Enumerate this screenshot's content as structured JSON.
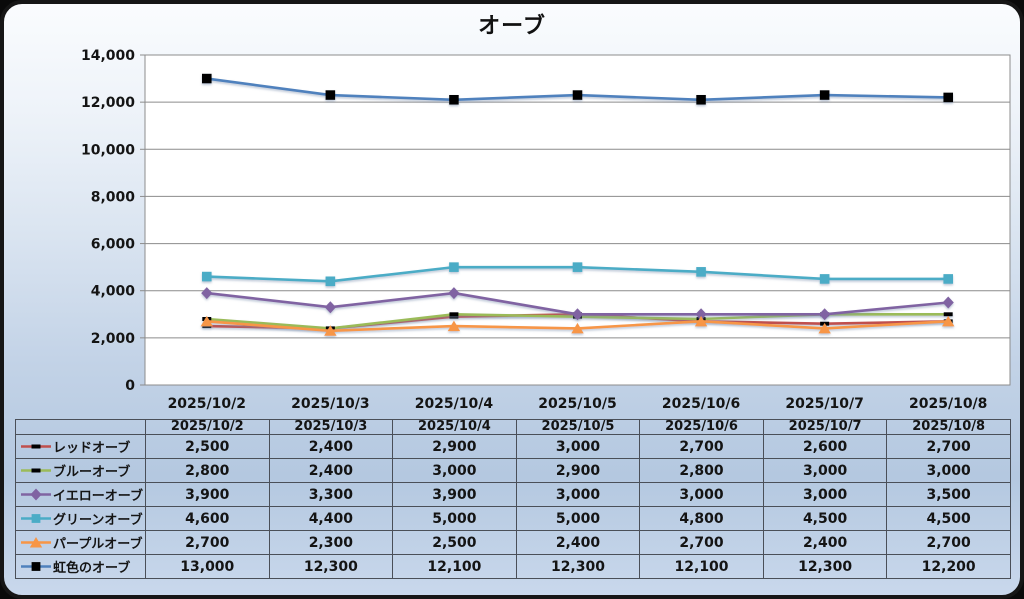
{
  "title": "オーブ",
  "colors": {
    "plot_background": "#ffffff",
    "gridline": "#8c8c8c",
    "text": "#141414",
    "panel_gradient_top": "#fafcfe",
    "panel_gradient_bottom": "#c9d8ec",
    "table_border": "#4a4f58"
  },
  "chart_data": {
    "type": "line",
    "title": "オーブ",
    "x": [
      "2025/10/2",
      "2025/10/3",
      "2025/10/4",
      "2025/10/5",
      "2025/10/6",
      "2025/10/7",
      "2025/10/8"
    ],
    "series": [
      {
        "name": "レッドオーブ",
        "color": "#C0504D",
        "marker": "dash",
        "marker_color": "#000000",
        "values": [
          2500,
          2400,
          2900,
          3000,
          2700,
          2600,
          2700
        ]
      },
      {
        "name": "ブルーオーブ",
        "color": "#9BBB59",
        "marker": "dash",
        "marker_color": "#000000",
        "values": [
          2800,
          2400,
          3000,
          2900,
          2800,
          3000,
          3000
        ]
      },
      {
        "name": "イエローオーブ",
        "color": "#8064A2",
        "marker": "diamond",
        "marker_color": "#8064A2",
        "values": [
          3900,
          3300,
          3900,
          3000,
          3000,
          3000,
          3500
        ]
      },
      {
        "name": "グリーンオーブ",
        "color": "#4BACC6",
        "marker": "square",
        "marker_color": "#4BACC6",
        "values": [
          4600,
          4400,
          5000,
          5000,
          4800,
          4500,
          4500
        ]
      },
      {
        "name": "パープルオーブ",
        "color": "#F79646",
        "marker": "triangle",
        "marker_color": "#F79646",
        "values": [
          2700,
          2300,
          2500,
          2400,
          2700,
          2400,
          2700
        ]
      },
      {
        "name": "虹色のオーブ",
        "color": "#4F81BD",
        "marker": "square",
        "marker_color": "#000000",
        "values": [
          13000,
          12300,
          12100,
          12300,
          12100,
          12300,
          12200
        ]
      }
    ],
    "ylim": [
      0,
      14000
    ],
    "ytick_step": 2000,
    "ytick_labels": [
      "0",
      "2,000",
      "4,000",
      "6,000",
      "8,000",
      "10,000",
      "12,000",
      "14,000"
    ],
    "grid": true,
    "legend_position": "table-left",
    "number_format": "thousands-comma"
  }
}
